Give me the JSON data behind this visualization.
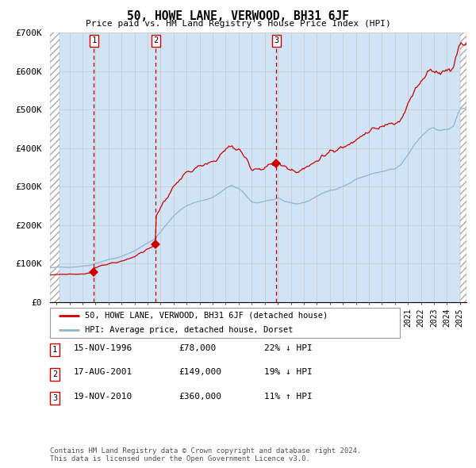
{
  "title": "50, HOWE LANE, VERWOOD, BH31 6JF",
  "subtitle": "Price paid vs. HM Land Registry's House Price Index (HPI)",
  "ylim": [
    0,
    700000
  ],
  "yticks": [
    0,
    100000,
    200000,
    300000,
    400000,
    500000,
    600000,
    700000
  ],
  "ytick_labels": [
    "£0",
    "£100K",
    "£200K",
    "£300K",
    "£400K",
    "£500K",
    "£600K",
    "£700K"
  ],
  "xlim_start": 1993.5,
  "xlim_end": 2025.5,
  "hatch_end": 1994.25,
  "hatch_start_right": 2025.0,
  "sale_dates": [
    1996.88,
    2001.63,
    2010.89
  ],
  "sale_prices": [
    78000,
    149000,
    360000
  ],
  "sale_labels": [
    "1",
    "2",
    "3"
  ],
  "hpi_color": "#92b4d4",
  "hpi_fill_color": "#d0e4f5",
  "price_color": "#cc0000",
  "dashed_line_color": "#cc0000",
  "legend_price_label": "50, HOWE LANE, VERWOOD, BH31 6JF (detached house)",
  "legend_hpi_label": "HPI: Average price, detached house, Dorset",
  "table_rows": [
    {
      "num": "1",
      "date": "15-NOV-1996",
      "price": "£78,000",
      "hpi": "22% ↓ HPI"
    },
    {
      "num": "2",
      "date": "17-AUG-2001",
      "price": "£149,000",
      "hpi": "19% ↓ HPI"
    },
    {
      "num": "3",
      "date": "19-NOV-2010",
      "price": "£360,000",
      "hpi": "11% ↑ HPI"
    }
  ],
  "footnote": "Contains HM Land Registry data © Crown copyright and database right 2024.\nThis data is licensed under the Open Government Licence v3.0.",
  "grid_color": "#cccccc",
  "bg_color": "#ddeeff"
}
